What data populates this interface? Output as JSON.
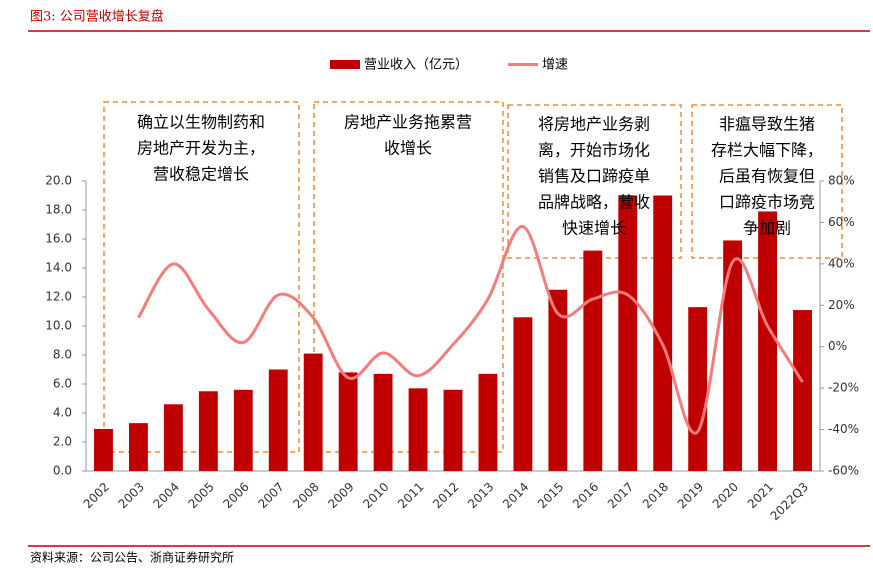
{
  "header": {
    "title": "图3:  公司营收增长复盘"
  },
  "chart_data": {
    "type": "bar-line",
    "categories": [
      "2002",
      "2003",
      "2004",
      "2005",
      "2006",
      "2007",
      "2008",
      "2009",
      "2010",
      "2011",
      "2012",
      "2013",
      "2014",
      "2015",
      "2016",
      "2017",
      "2018",
      "2019",
      "2020",
      "2021",
      "2022Q3"
    ],
    "series": [
      {
        "name": "营业收入（亿元）",
        "color": "#c00000",
        "type": "bar",
        "values": [
          2.9,
          3.3,
          4.6,
          5.5,
          5.6,
          7.0,
          8.1,
          6.8,
          6.7,
          5.7,
          5.6,
          6.7,
          10.6,
          12.5,
          15.2,
          19.0,
          19.0,
          11.3,
          15.9,
          17.9,
          11.1
        ]
      },
      {
        "name": "增速",
        "color": "#f47c7c",
        "type": "line",
        "axis": "y2",
        "values": [
          null,
          14,
          40,
          18,
          2,
          25,
          14,
          -15,
          -3,
          -14,
          1,
          23,
          58,
          16,
          23,
          25,
          1,
          -41,
          41,
          10,
          -17
        ]
      }
    ],
    "ylim": [
      0,
      20
    ],
    "yticks": [
      {
        "value": 0,
        "label": "0.0"
      },
      {
        "value": 2,
        "label": "2.0"
      },
      {
        "value": 4,
        "label": "4.0"
      },
      {
        "value": 6,
        "label": "6.0"
      },
      {
        "value": 8,
        "label": "8.0"
      },
      {
        "value": 10,
        "label": "10.0"
      },
      {
        "value": 12,
        "label": "12.0"
      },
      {
        "value": 14,
        "label": "14.0"
      },
      {
        "value": 16,
        "label": "16.0"
      },
      {
        "value": 18,
        "label": "18.0"
      },
      {
        "value": 20,
        "label": "20.0"
      }
    ],
    "y2lim": [
      -60,
      80
    ],
    "y2ticks": [
      {
        "value": -60,
        "label": "-60%"
      },
      {
        "value": -40,
        "label": "-40%"
      },
      {
        "value": -20,
        "label": "-20%"
      },
      {
        "value": 0,
        "label": "0%"
      },
      {
        "value": 20,
        "label": "20%"
      },
      {
        "value": 40,
        "label": "40%"
      },
      {
        "value": 60,
        "label": "60%"
      },
      {
        "value": 80,
        "label": "80%"
      }
    ],
    "annotations": [
      {
        "lines": [
          "确立以生物制药和",
          "房地产开发为主，",
          "营收稳定增长"
        ]
      },
      {
        "lines": [
          "房地产业务拖累营",
          "收增长"
        ]
      },
      {
        "lines": [
          "将房地产业务剥",
          "离，开始市场化",
          "销售及口蹄疫单",
          "品牌战略，营收",
          "快速增长"
        ]
      },
      {
        "lines": [
          "非瘟导致生猪",
          "存栏大幅下降，",
          "后虽有恢复但",
          "口蹄疫市场竞",
          "争加剧"
        ]
      }
    ]
  },
  "footer": {
    "source": "资料来源：公司公告、浙商证券研究所"
  }
}
